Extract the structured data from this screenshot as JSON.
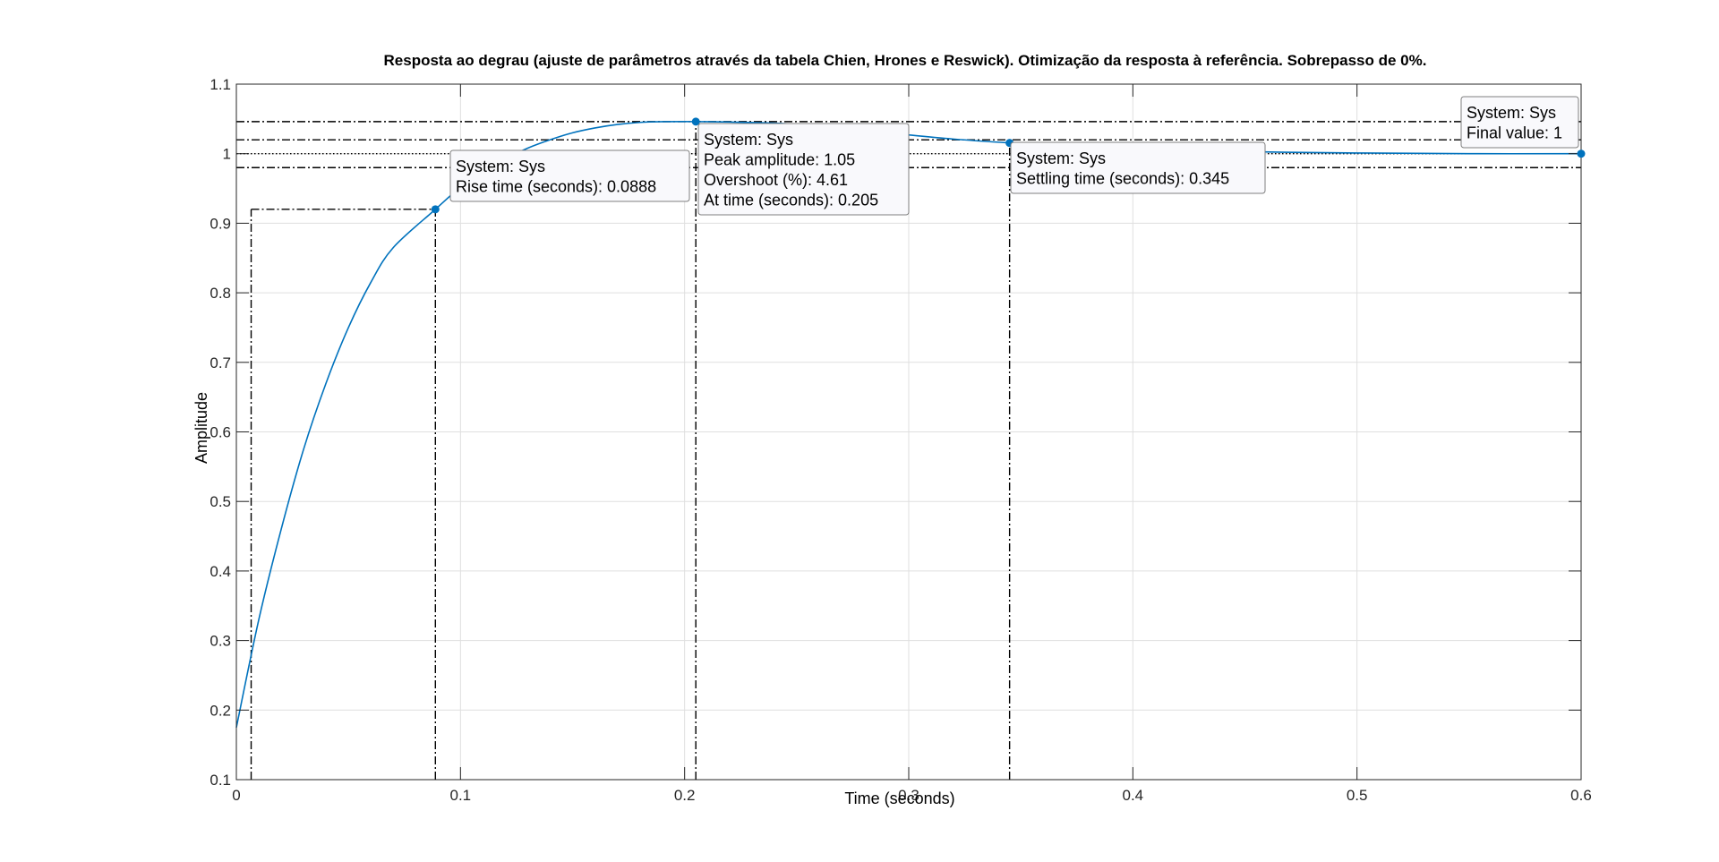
{
  "chart_data": {
    "type": "line",
    "title": "Resposta ao degrau (ajuste de parâmetros através da tabela Chien, Hrones e Reswick). Otimização da resposta à referência. Sobrepasso de 0%.",
    "xlabel": "Time (seconds)",
    "ylabel": "Amplitude",
    "xlim": [
      0,
      0.6
    ],
    "ylim": [
      0.1,
      1.1
    ],
    "xticks": [
      0,
      0.1,
      0.2,
      0.3,
      0.4,
      0.5,
      0.6
    ],
    "xtick_labels": [
      "0",
      "0.1",
      "0.2",
      "0.3",
      "0.4",
      "0.5",
      "0.6"
    ],
    "yticks": [
      0.1,
      0.2,
      0.3,
      0.4,
      0.5,
      0.6,
      0.7,
      0.8,
      0.9,
      1,
      1.1
    ],
    "ytick_labels": [
      "0.1",
      "0.2",
      "0.3",
      "0.4",
      "0.5",
      "0.6",
      "0.7",
      "0.8",
      "0.9",
      "1",
      "1.1"
    ],
    "grid": true,
    "series_color": "#0072BD",
    "series": [
      {
        "x": [
          0,
          0.01,
          0.02,
          0.03,
          0.04,
          0.05,
          0.06,
          0.07,
          0.0888,
          0.1,
          0.11,
          0.12,
          0.13,
          0.14,
          0.15,
          0.16,
          0.17,
          0.18,
          0.19,
          0.205,
          0.22,
          0.24,
          0.26,
          0.28,
          0.3,
          0.32,
          0.345,
          0.37,
          0.4,
          0.45,
          0.5,
          0.55,
          0.6
        ],
        "y": [
          0.175,
          0.33,
          0.46,
          0.575,
          0.67,
          0.75,
          0.815,
          0.865,
          0.92,
          0.952,
          0.975,
          0.993,
          1.008,
          1.02,
          1.03,
          1.037,
          1.042,
          1.045,
          1.046,
          1.0461,
          1.0455,
          1.044,
          1.04,
          1.034,
          1.027,
          1.021,
          1.0155,
          1.011,
          1.007,
          1.003,
          1.001,
          1.0,
          1.0
        ]
      }
    ],
    "reference_lines": [
      {
        "y": 1.0461,
        "style": "dash-dot"
      },
      {
        "y": 1.02,
        "style": "dash-dot"
      },
      {
        "y": 1.0,
        "style": "dotted"
      },
      {
        "y": 0.98,
        "style": "dash-dot"
      },
      {
        "y": 0.92,
        "style": "dash-dot",
        "x_range": [
          0.0066,
          0.0888
        ]
      },
      {
        "x": 0.0066,
        "style": "dash-dot",
        "y_range": [
          0.1,
          0.92
        ]
      },
      {
        "x": 0.0888,
        "style": "dash-dot",
        "y_range": [
          0.1,
          0.92
        ]
      },
      {
        "x": 0.205,
        "style": "dash-dot",
        "y_range": [
          0.1,
          1.0461
        ]
      },
      {
        "x": 0.345,
        "style": "dash-dot",
        "y_range": [
          0.1,
          1.0155
        ]
      }
    ],
    "markers": [
      {
        "name": "rise",
        "x": 0.0888,
        "y": 0.92
      },
      {
        "name": "peak",
        "x": 0.205,
        "y": 1.0461
      },
      {
        "name": "settling",
        "x": 0.345,
        "y": 1.0155
      },
      {
        "name": "final",
        "x": 0.6,
        "y": 1.0
      }
    ],
    "datatips": [
      {
        "name": "rise-time-tip",
        "lines": [
          "System: Sys",
          "Rise time (seconds): 0.0888"
        ]
      },
      {
        "name": "peak-tip",
        "lines": [
          "System: Sys",
          "Peak amplitude: 1.05",
          "Overshoot (%): 4.61",
          "At time (seconds): 0.205"
        ]
      },
      {
        "name": "settling-time-tip",
        "lines": [
          "System: Sys",
          "Settling time (seconds): 0.345"
        ]
      },
      {
        "name": "final-value-tip",
        "lines": [
          "System: Sys",
          "Final value: 1"
        ]
      }
    ]
  }
}
